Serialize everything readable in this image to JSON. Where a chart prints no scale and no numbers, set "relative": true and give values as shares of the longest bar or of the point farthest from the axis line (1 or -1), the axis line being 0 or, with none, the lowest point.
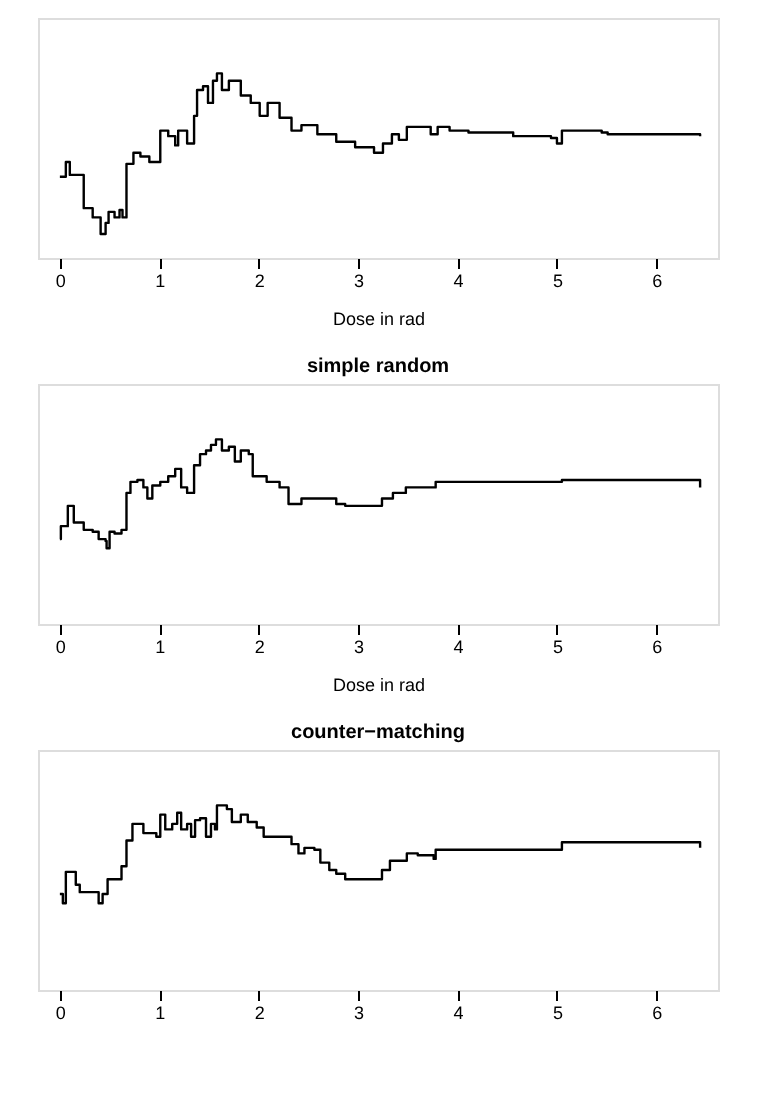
{
  "chart_data": [
    {
      "type": "step",
      "relative": true,
      "xlabel": "Dose in rad",
      "xlim": [
        -0.22,
        6.62
      ],
      "xticks": [
        0,
        1,
        2,
        3,
        4,
        5,
        6
      ],
      "grid": false,
      "color": "#000000",
      "x": [
        0,
        0.06,
        0.1,
        0.24,
        0.33,
        0.41,
        0.46,
        0.49,
        0.55,
        0.6,
        0.63,
        0.67,
        0.74,
        0.81,
        0.9,
        1.01,
        1.09,
        1.16,
        1.19,
        1.28,
        1.35,
        1.38,
        1.44,
        1.49,
        1.54,
        1.58,
        1.63,
        1.7,
        1.82,
        1.92,
        2.01,
        2.09,
        2.21,
        2.33,
        2.43,
        2.59,
        2.78,
        2.97,
        3.16,
        3.22,
        3.25,
        3.34,
        3.41,
        3.49,
        3.73,
        3.8,
        3.92,
        4.11,
        4.56,
        4.94,
        5.0,
        5.05,
        5.45,
        5.51,
        6.43,
        6.44
      ],
      "values": [
        0.44,
        0.52,
        0.45,
        0.27,
        0.22,
        0.13,
        0.19,
        0.25,
        0.22,
        0.26,
        0.22,
        0.51,
        0.57,
        0.55,
        0.52,
        0.69,
        0.66,
        0.61,
        0.69,
        0.62,
        0.77,
        0.91,
        0.93,
        0.84,
        0.96,
        1,
        0.91,
        0.96,
        0.88,
        0.84,
        0.77,
        0.84,
        0.76,
        0.69,
        0.72,
        0.67,
        0.63,
        0.6,
        0.57,
        0.57,
        0.62,
        0.67,
        0.64,
        0.71,
        0.67,
        0.71,
        0.69,
        0.68,
        0.66,
        0.65,
        0.62,
        0.69,
        0.68,
        0.67,
        0.67,
        0.66
      ]
    },
    {
      "type": "step",
      "relative": true,
      "title": "simple random",
      "xlabel": "Dose in rad",
      "xlim": [
        -0.22,
        6.62
      ],
      "xticks": [
        0,
        1,
        2,
        3,
        4,
        5,
        6
      ],
      "grid": false,
      "color": "#000000",
      "x": [
        0,
        0.01,
        0.08,
        0.14,
        0.24,
        0.33,
        0.39,
        0.46,
        0.47,
        0.5,
        0.55,
        0.62,
        0.67,
        0.71,
        0.78,
        0.84,
        0.88,
        0.93,
        1.01,
        1.09,
        1.16,
        1.22,
        1.28,
        1.35,
        1.41,
        1.47,
        1.52,
        1.57,
        1.63,
        1.7,
        1.76,
        1.82,
        1.9,
        1.94,
        2.02,
        2.08,
        2.21,
        2.3,
        2.43,
        2.75,
        2.78,
        2.87,
        3.22,
        3.24,
        3.35,
        3.48,
        3.76,
        3.78,
        5.03,
        5.05,
        6.43,
        6.44
      ],
      "values": [
        0.46,
        0.53,
        0.64,
        0.55,
        0.51,
        0.5,
        0.46,
        0.45,
        0.41,
        0.5,
        0.49,
        0.51,
        0.71,
        0.77,
        0.78,
        0.74,
        0.68,
        0.75,
        0.77,
        0.8,
        0.84,
        0.74,
        0.71,
        0.86,
        0.92,
        0.94,
        0.97,
        1,
        0.94,
        0.96,
        0.88,
        0.94,
        0.92,
        0.8,
        0.8,
        0.77,
        0.74,
        0.65,
        0.68,
        0.68,
        0.65,
        0.64,
        0.64,
        0.68,
        0.71,
        0.74,
        0.74,
        0.77,
        0.77,
        0.78,
        0.78,
        0.74
      ]
    },
    {
      "type": "step",
      "relative": true,
      "title": "counter−matching",
      "xlim": [
        -0.22,
        6.62
      ],
      "xticks": [
        0,
        1,
        2,
        3,
        4,
        5,
        6
      ],
      "grid": false,
      "color": "#000000",
      "x": [
        0,
        0.03,
        0.06,
        0.12,
        0.16,
        0.2,
        0.36,
        0.39,
        0.43,
        0.48,
        0.55,
        0.62,
        0.67,
        0.73,
        0.79,
        0.84,
        0.9,
        0.97,
        1.01,
        1.06,
        1.13,
        1.18,
        1.22,
        1.28,
        1.32,
        1.36,
        1.41,
        1.47,
        1.52,
        1.56,
        1.58,
        1.63,
        1.68,
        1.73,
        1.82,
        1.89,
        1.98,
        2.05,
        2.11,
        2.21,
        2.33,
        2.4,
        2.46,
        2.56,
        2.62,
        2.71,
        2.78,
        2.87,
        3.22,
        3.24,
        3.32,
        3.45,
        3.49,
        3.6,
        3.76,
        3.78,
        5.03,
        5.05,
        6.43,
        6.44
      ],
      "values": [
        0.52,
        0.47,
        0.64,
        0.64,
        0.57,
        0.53,
        0.53,
        0.47,
        0.52,
        0.6,
        0.6,
        0.67,
        0.81,
        0.9,
        0.9,
        0.85,
        0.85,
        0.83,
        0.95,
        0.87,
        0.9,
        0.96,
        0.87,
        0.9,
        0.83,
        0.92,
        0.93,
        0.83,
        0.9,
        0.87,
        1,
        1,
        0.98,
        0.91,
        0.95,
        0.91,
        0.88,
        0.83,
        0.83,
        0.83,
        0.79,
        0.74,
        0.77,
        0.76,
        0.69,
        0.65,
        0.63,
        0.6,
        0.6,
        0.65,
        0.7,
        0.7,
        0.74,
        0.73,
        0.71,
        0.76,
        0.76,
        0.8,
        0.8,
        0.77
      ]
    }
  ]
}
